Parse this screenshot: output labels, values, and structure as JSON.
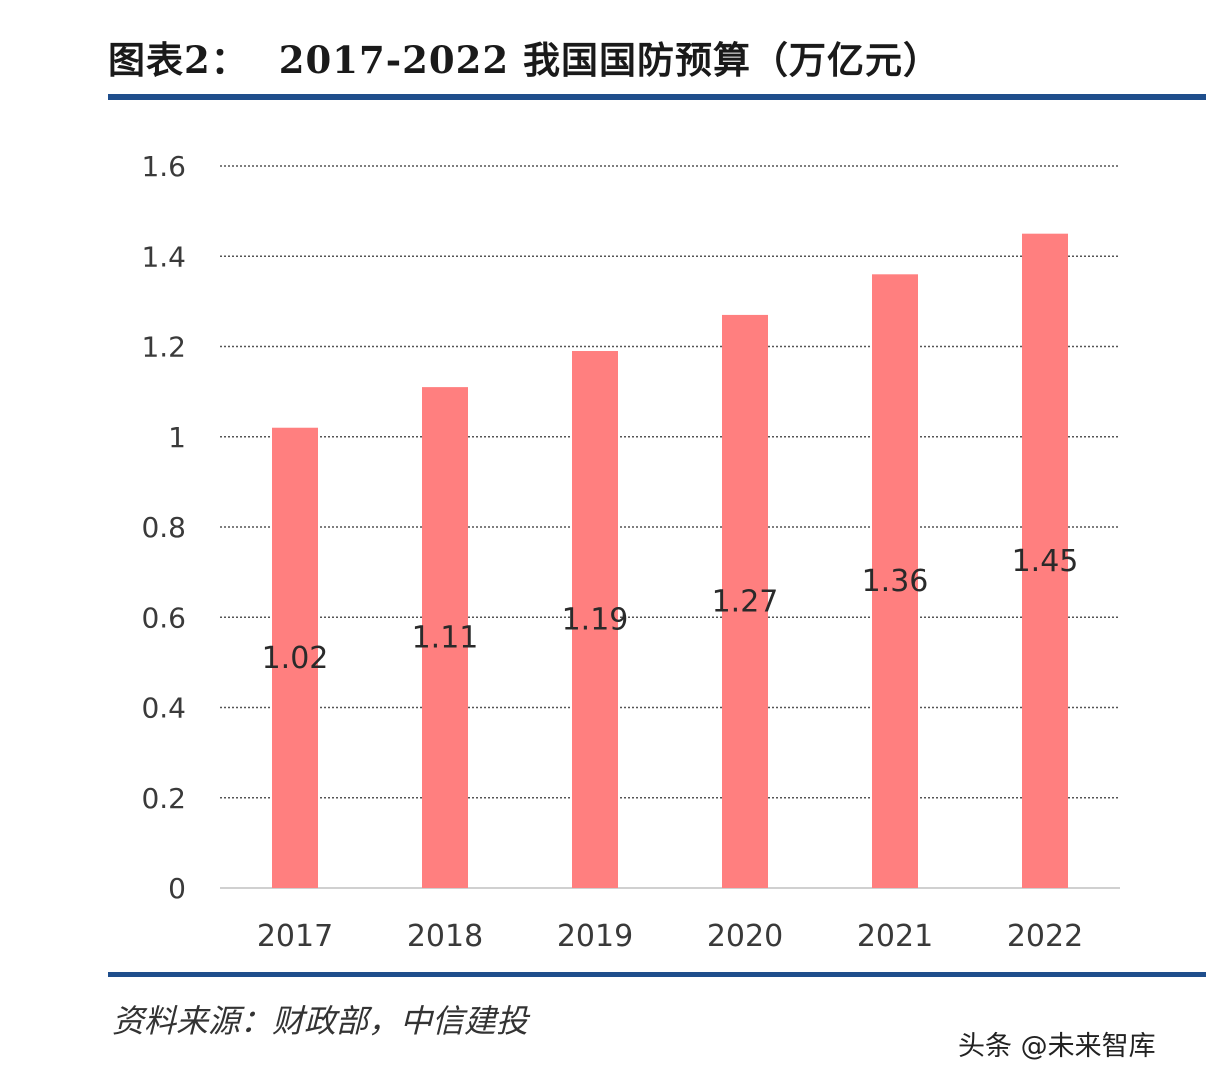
{
  "header": {
    "prefix": "图表2：",
    "title": "2017-2022 我国国防预算（万亿元）"
  },
  "footer": {
    "source": "资料来源：财政部，中信建投",
    "watermark": "头条 @未来智库"
  },
  "colors": {
    "bar": "#ff7f7f",
    "rule": "#1f4e8c",
    "grid": "#555555",
    "axis": "#d0d0d0"
  },
  "chart_data": {
    "type": "bar",
    "title": "2017-2022 我国国防预算（万亿元）",
    "categories": [
      "2017",
      "2018",
      "2019",
      "2020",
      "2021",
      "2022"
    ],
    "values": [
      1.02,
      1.11,
      1.19,
      1.27,
      1.36,
      1.45
    ],
    "data_labels": [
      "1.02",
      "1.11",
      "1.19",
      "1.27",
      "1.36",
      "1.45"
    ],
    "yticks": [
      "0",
      "0.2",
      "0.4",
      "0.6",
      "0.8",
      "1",
      "1.2",
      "1.4",
      "1.6"
    ],
    "ylim": [
      0,
      1.6
    ],
    "grid": true,
    "xlabel": "",
    "ylabel": ""
  }
}
